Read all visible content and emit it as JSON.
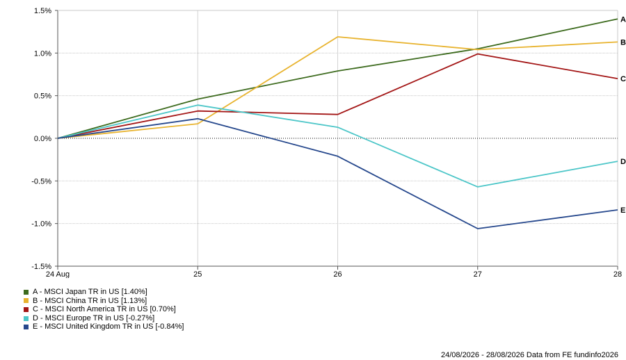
{
  "chart_data": {
    "type": "line",
    "categories": [
      "24 Aug",
      "25",
      "26",
      "27",
      "28"
    ],
    "ylim": [
      -1.5,
      1.5
    ],
    "yticks": [
      1.5,
      1.0,
      0.5,
      0.0,
      -0.5,
      -1.0,
      -1.5
    ],
    "ytick_labels": [
      "1.5%",
      "1.0%",
      "0.5%",
      "0.0%",
      "-0.5%",
      "-1.0%",
      "-1.5%"
    ],
    "grid": true,
    "legend_position": "bottom-left",
    "series": [
      {
        "name": "A - MSCI Japan TR in US [1.40%]",
        "end_label": "A",
        "color": "#3d6b1e",
        "values": [
          0,
          0.46,
          0.79,
          1.05,
          1.4
        ]
      },
      {
        "name": "B - MSCI China TR in US [1.13%]",
        "end_label": "B",
        "color": "#e8b32e",
        "values": [
          0,
          0.17,
          1.19,
          1.04,
          1.13
        ]
      },
      {
        "name": "C - MSCI North America TR in US [0.70%]",
        "end_label": "C",
        "color": "#a31515",
        "values": [
          0,
          0.32,
          0.28,
          0.99,
          0.7
        ]
      },
      {
        "name": "D - MSCI Europe TR in US [-0.27%]",
        "end_label": "D",
        "color": "#4cc6c8",
        "values": [
          0,
          0.39,
          0.13,
          -0.57,
          -0.27
        ]
      },
      {
        "name": "E - MSCI United Kingdom TR in US [-0.84%]",
        "end_label": "E",
        "color": "#25478c",
        "values": [
          0,
          0.23,
          -0.21,
          -1.06,
          -0.84
        ]
      }
    ]
  },
  "footer": {
    "text": "24/08/2026 - 28/08/2026 Data from FE fundinfo2026"
  }
}
